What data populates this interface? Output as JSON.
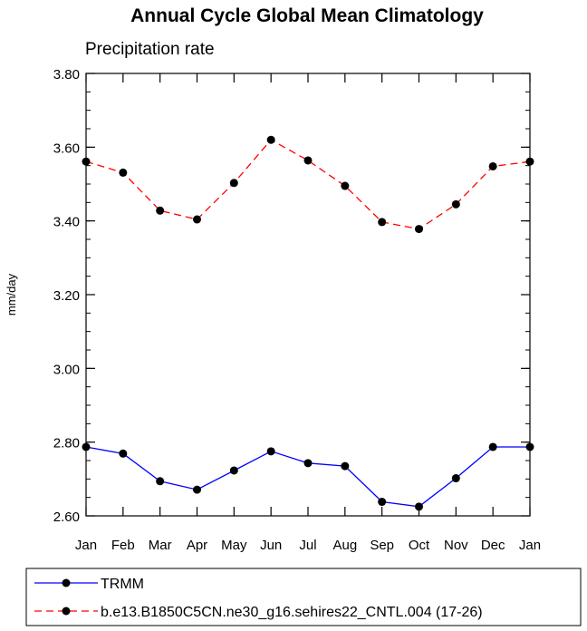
{
  "chart_data": {
    "type": "line",
    "title": "Annual Cycle Global Mean Climatology",
    "subtitle": "Precipitation rate",
    "ylabel": "mm/day",
    "xlabel": "",
    "categories": [
      "Jan",
      "Feb",
      "Mar",
      "Apr",
      "May",
      "Jun",
      "Jul",
      "Aug",
      "Sep",
      "Oct",
      "Nov",
      "Dec",
      "Jan"
    ],
    "ylim": [
      2.6,
      3.8
    ],
    "yticks": [
      "2.60",
      "2.80",
      "3.00",
      "3.20",
      "3.40",
      "3.60",
      "3.80"
    ],
    "y_minor_step": 0.05,
    "grid": false,
    "legend_position": "bottom",
    "series": [
      {
        "name": "TRMM",
        "color": "#0000ff",
        "line_style": "solid",
        "marker_color": "#000000",
        "values": [
          2.787,
          2.769,
          2.694,
          2.671,
          2.723,
          2.775,
          2.743,
          2.735,
          2.638,
          2.625,
          2.702,
          2.787,
          2.787
        ]
      },
      {
        "name": "b.e13.B1850C5CN.ne30_g16.sehires22_CNTL.004 (17-26)",
        "color": "#ff0000",
        "line_style": "dashed",
        "marker_color": "#000000",
        "values": [
          3.561,
          3.531,
          3.428,
          3.404,
          3.503,
          3.62,
          3.564,
          3.495,
          3.397,
          3.378,
          3.445,
          3.548,
          3.561
        ]
      }
    ]
  }
}
